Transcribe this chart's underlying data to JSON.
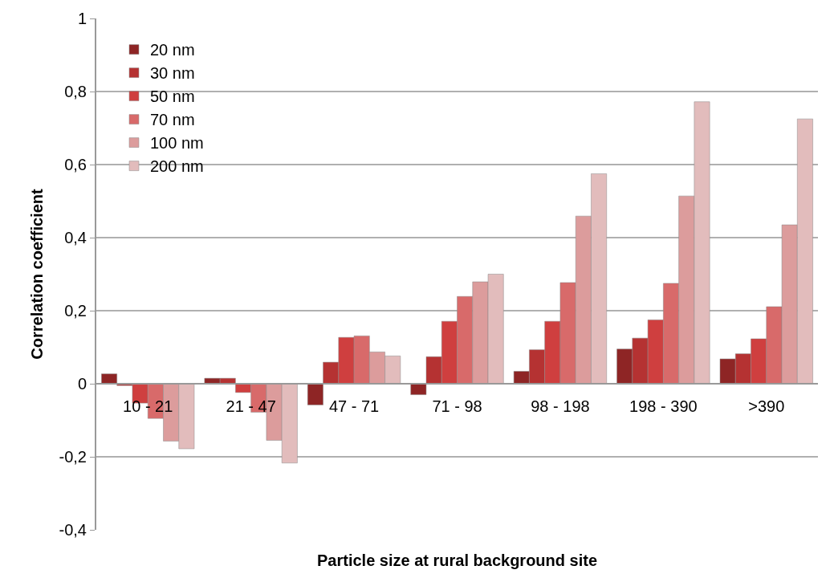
{
  "chart_data": {
    "type": "bar",
    "xlabel": "Particle size at rural background site",
    "ylabel": "Correlation coefficient",
    "categories": [
      "10 - 21",
      "21 - 47",
      "47 - 71",
      "71 - 98",
      "98 - 198",
      "198 - 390",
      ">390"
    ],
    "series": [
      {
        "name": "20 nm",
        "color": "#8e2525",
        "values": [
          0.027,
          0.015,
          -0.058,
          -0.03,
          0.034,
          0.095,
          0.068
        ]
      },
      {
        "name": "30 nm",
        "color": "#b53232",
        "values": [
          -0.005,
          0.015,
          0.059,
          0.074,
          0.093,
          0.125,
          0.082
        ]
      },
      {
        "name": "50 nm",
        "color": "#cf3f3f",
        "values": [
          -0.053,
          -0.024,
          0.127,
          0.171,
          0.171,
          0.175,
          0.123
        ]
      },
      {
        "name": "70 nm",
        "color": "#d86a6a",
        "values": [
          -0.095,
          -0.078,
          0.131,
          0.239,
          0.277,
          0.275,
          0.211
        ]
      },
      {
        "name": "100 nm",
        "color": "#dc9c9c",
        "values": [
          -0.157,
          -0.155,
          0.087,
          0.279,
          0.459,
          0.514,
          0.435
        ]
      },
      {
        "name": "200 nm",
        "color": "#e2bcbc",
        "values": [
          -0.178,
          -0.217,
          0.076,
          0.3,
          0.575,
          0.772,
          0.725
        ]
      }
    ],
    "ylim": [
      -0.4,
      1
    ],
    "yticks": [
      {
        "value": -0.4,
        "label": "-0,4"
      },
      {
        "value": -0.2,
        "label": "-0,2"
      },
      0,
      {
        "value": 0.2,
        "label": "0,2"
      },
      {
        "value": 0.4,
        "label": "0,4"
      },
      {
        "value": 0.6,
        "label": "0,6"
      },
      {
        "value": 0.8,
        "label": "0,8"
      },
      1
    ],
    "grid": "y",
    "legend": "top left"
  }
}
